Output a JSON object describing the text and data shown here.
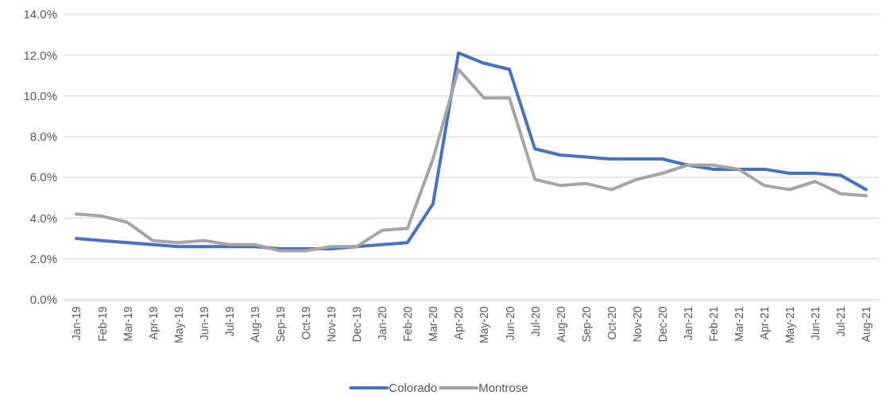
{
  "chart_data": {
    "type": "line",
    "categories": [
      "Jan-19",
      "Feb-19",
      "Mar-19",
      "Apr-19",
      "May-19",
      "Jun-19",
      "Jul-19",
      "Aug-19",
      "Sep-19",
      "Oct-19",
      "Nov-19",
      "Dec-19",
      "Jan-20",
      "Feb-20",
      "Mar-20",
      "Apr-20",
      "May-20",
      "Jun-20",
      "Jul-20",
      "Aug-20",
      "Sep-20",
      "Oct-20",
      "Nov-20",
      "Dec-20",
      "Jan-21",
      "Feb-21",
      "Mar-21",
      "Apr-21",
      "May-21",
      "Jun-21",
      "Jul-21",
      "Aug-21"
    ],
    "series": [
      {
        "name": "Colorado",
        "color": "#4472c4",
        "values": [
          3.0,
          2.9,
          2.8,
          2.7,
          2.6,
          2.6,
          2.6,
          2.6,
          2.5,
          2.5,
          2.5,
          2.6,
          2.7,
          2.8,
          4.7,
          12.1,
          11.6,
          11.3,
          7.4,
          7.1,
          7.0,
          6.9,
          6.9,
          6.9,
          6.6,
          6.4,
          6.4,
          6.4,
          6.2,
          6.2,
          6.1,
          5.4
        ]
      },
      {
        "name": "Montrose",
        "color": "#a5a5a5",
        "values": [
          4.2,
          4.1,
          3.8,
          2.9,
          2.8,
          2.9,
          2.7,
          2.7,
          2.4,
          2.4,
          2.6,
          2.6,
          3.4,
          3.5,
          6.9,
          11.3,
          9.9,
          9.9,
          5.9,
          5.6,
          5.7,
          5.4,
          5.9,
          6.2,
          6.6,
          6.6,
          6.4,
          5.6,
          5.4,
          5.8,
          5.2,
          5.1
        ]
      }
    ],
    "ylim": [
      0,
      14
    ],
    "yticks": [
      {
        "value": 0,
        "label": "0.0%"
      },
      {
        "value": 2,
        "label": "2.0%"
      },
      {
        "value": 4,
        "label": "4.0%"
      },
      {
        "value": 6,
        "label": "6.0%"
      },
      {
        "value": 8,
        "label": "8.0%"
      },
      {
        "value": 10,
        "label": "10.0%"
      },
      {
        "value": 12,
        "label": "12.0%"
      },
      {
        "value": 14,
        "label": "14.0%"
      }
    ],
    "grid": "y",
    "legend": "bottom",
    "marker": "none",
    "line_style": "solid"
  }
}
